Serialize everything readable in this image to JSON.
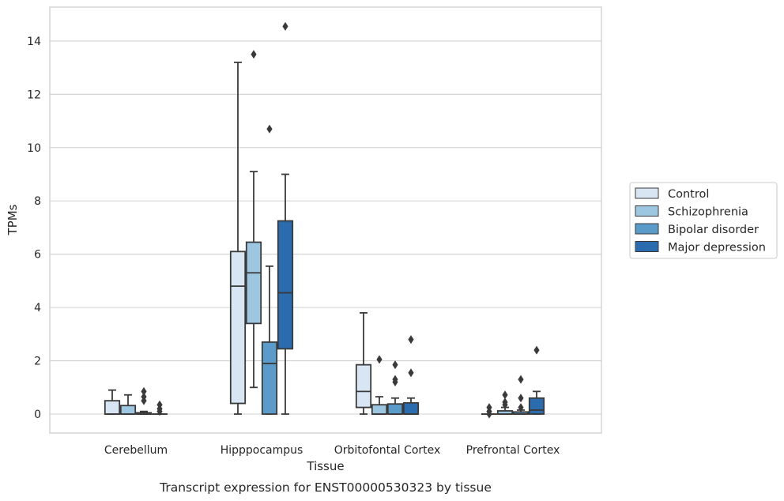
{
  "caption": "Transcript expression for ENST00000530323 by tissue",
  "chart_data": {
    "type": "box",
    "xlabel": "Tissue",
    "ylabel": "TPMs",
    "ylim": [
      -0.7,
      15.3
    ],
    "yticks": [
      0,
      2,
      4,
      6,
      8,
      10,
      12,
      14
    ],
    "grid": "horizontal",
    "legend_position": "right",
    "categories": [
      "Cerebellum",
      "Hipppocampus",
      "Orbitofontal Cortex",
      "Prefrontal Cortex"
    ],
    "series": [
      {
        "name": "Control",
        "color": "#d8e6f4",
        "boxes": [
          {
            "min": 0,
            "q1": 0,
            "median": 0,
            "q3": 0.5,
            "max": 0.9,
            "outliers": []
          },
          {
            "min": 0,
            "q1": 0.4,
            "median": 4.8,
            "q3": 6.1,
            "max": 13.2,
            "outliers": []
          },
          {
            "min": 0,
            "q1": 0.25,
            "median": 0.85,
            "q3": 1.85,
            "max": 3.8,
            "outliers": []
          },
          {
            "min": 0,
            "q1": 0,
            "median": 0,
            "q3": 0,
            "max": 0,
            "outliers": [
              0.1,
              0.25,
              0.0
            ]
          }
        ]
      },
      {
        "name": "Schizophrenia",
        "color": "#9dc6e0",
        "boxes": [
          {
            "min": 0,
            "q1": 0,
            "median": 0,
            "q3": 0.32,
            "max": 0.72,
            "outliers": []
          },
          {
            "min": 1.0,
            "q1": 3.4,
            "median": 5.3,
            "q3": 6.45,
            "max": 9.1,
            "outliers": [
              13.5
            ]
          },
          {
            "min": 0,
            "q1": 0,
            "median": 0,
            "q3": 0.35,
            "max": 0.65,
            "outliers": [
              2.05
            ]
          },
          {
            "min": 0,
            "q1": 0,
            "median": 0,
            "q3": 0.12,
            "max": 0.25,
            "outliers": [
              0.35,
              0.45,
              0.72
            ]
          }
        ]
      },
      {
        "name": "Bipolar disorder",
        "color": "#5b9bc9",
        "boxes": [
          {
            "min": 0,
            "q1": 0,
            "median": 0,
            "q3": 0.05,
            "max": 0.1,
            "outliers": [
              0.5,
              0.65,
              0.85
            ]
          },
          {
            "min": 0,
            "q1": 0,
            "median": 1.9,
            "q3": 2.7,
            "max": 5.55,
            "outliers": [
              10.7
            ]
          },
          {
            "min": 0,
            "q1": 0,
            "median": 0,
            "q3": 0.38,
            "max": 0.6,
            "outliers": [
              1.2,
              1.3,
              1.85
            ]
          },
          {
            "min": 0,
            "q1": 0,
            "median": 0,
            "q3": 0.08,
            "max": 0.15,
            "outliers": [
              0.25,
              0.6,
              1.3
            ]
          }
        ]
      },
      {
        "name": "Major depression",
        "color": "#2a6cad",
        "boxes": [
          {
            "min": 0,
            "q1": 0,
            "median": 0,
            "q3": 0,
            "max": 0,
            "outliers": [
              0.1,
              0.2,
              0.35
            ]
          },
          {
            "min": 0,
            "q1": 2.45,
            "median": 4.55,
            "q3": 7.25,
            "max": 9.0,
            "outliers": [
              14.55
            ]
          },
          {
            "min": 0,
            "q1": 0,
            "median": 0,
            "q3": 0.42,
            "max": 0.6,
            "outliers": [
              1.55,
              2.8
            ]
          },
          {
            "min": 0,
            "q1": 0,
            "median": 0.15,
            "q3": 0.6,
            "max": 0.85,
            "outliers": [
              2.4
            ]
          }
        ]
      }
    ]
  }
}
